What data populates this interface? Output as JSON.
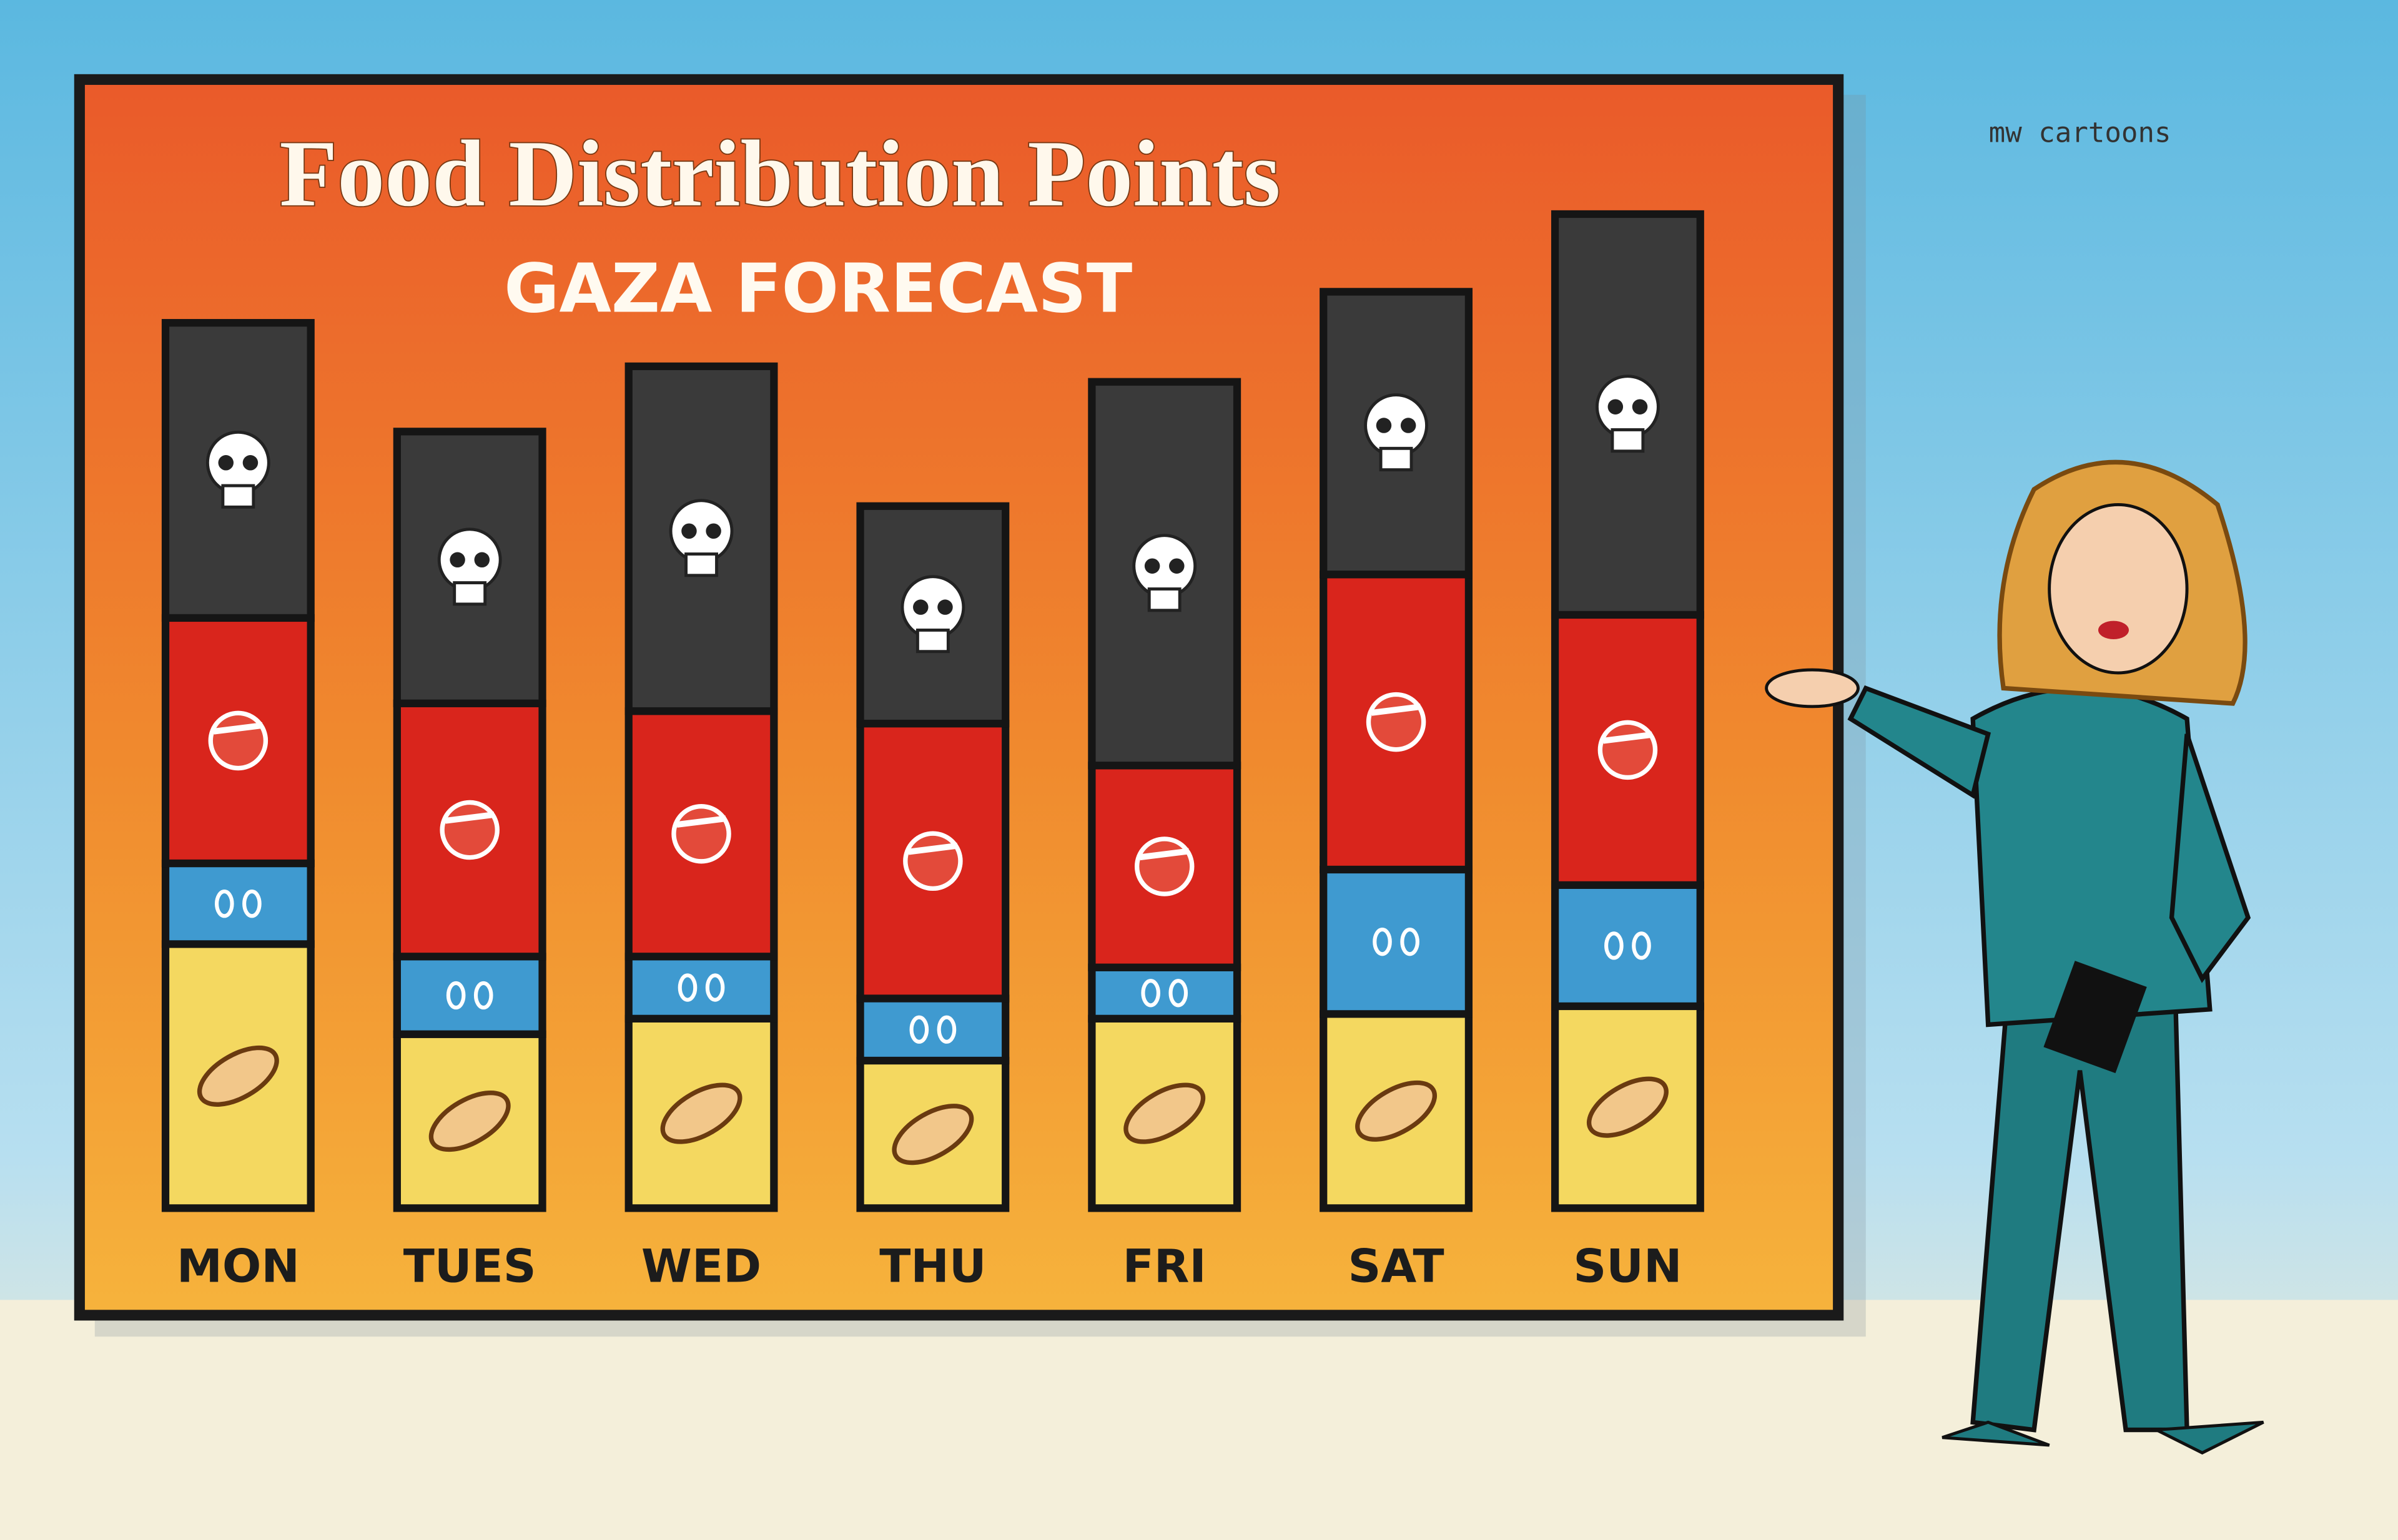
{
  "chart_data": {
    "type": "stacked-bar",
    "title": "Food Distribution Points",
    "subtitle": "GAZA FORECAST",
    "categories": [
      "MON",
      "TUES",
      "WED",
      "THU",
      "FRI",
      "SAT",
      "SUN"
    ],
    "series": [
      {
        "color": "#f4d860",
        "values": [
          170,
          112,
          122,
          95,
          122,
          125,
          130
        ]
      },
      {
        "color": "#3f9ad0",
        "values": [
          52,
          50,
          40,
          40,
          33,
          93,
          78
        ]
      },
      {
        "color": "#d9251c",
        "values": [
          158,
          163,
          158,
          177,
          130,
          190,
          174
        ]
      },
      {
        "color": "#3a3a3a",
        "values": [
          190,
          175,
          222,
          140,
          247,
          182,
          258
        ]
      }
    ]
  },
  "signature": "mw cartoons"
}
